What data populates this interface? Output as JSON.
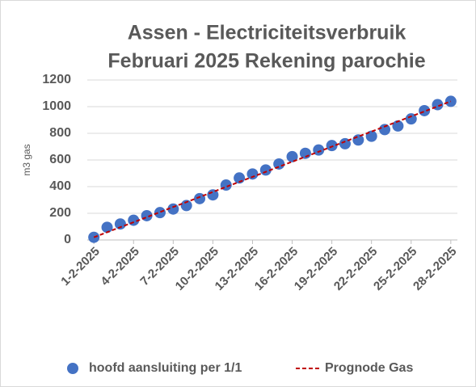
{
  "chart_data": {
    "type": "scatter",
    "title": [
      "Assen - Electriciteitsverbruik",
      "Februari 2025 Rekening parochie"
    ],
    "y_label": "m3 gas",
    "categories": [
      "1-2-2025",
      null,
      null,
      "4-2-2025",
      null,
      null,
      "7-2-2025",
      null,
      null,
      "10-2-2025",
      null,
      null,
      "13-2-2025",
      null,
      null,
      "16-2-2025",
      null,
      null,
      "19-2-2025",
      null,
      null,
      "22-2-2025",
      null,
      null,
      "25-2-2025",
      null,
      null,
      "28-2-2025"
    ],
    "series": [
      {
        "name": "hoofd aansluiting per 1/1",
        "color": "#4472c4",
        "type": "scatter",
        "values": [
          20,
          95,
          120,
          148,
          182,
          205,
          232,
          258,
          310,
          338,
          412,
          465,
          495,
          525,
          570,
          625,
          650,
          675,
          708,
          722,
          750,
          778,
          828,
          855,
          908,
          970,
          1015,
          1040
        ]
      },
      {
        "name": "Prognode Gas",
        "color": "#c00000",
        "type": "line",
        "dashed": true,
        "values": [
          20,
          58,
          96,
          133,
          171,
          209,
          247,
          284,
          322,
          360,
          398,
          436,
          473,
          511,
          549,
          587,
          624,
          662,
          700,
          738,
          776,
          813,
          851,
          889,
          927,
          964,
          1002,
          1040
        ]
      }
    ],
    "ylim": [
      0,
      1200
    ],
    "yticks": [
      0,
      200,
      400,
      600,
      800,
      1000,
      1200
    ],
    "grid": true,
    "legend": "bottom"
  }
}
